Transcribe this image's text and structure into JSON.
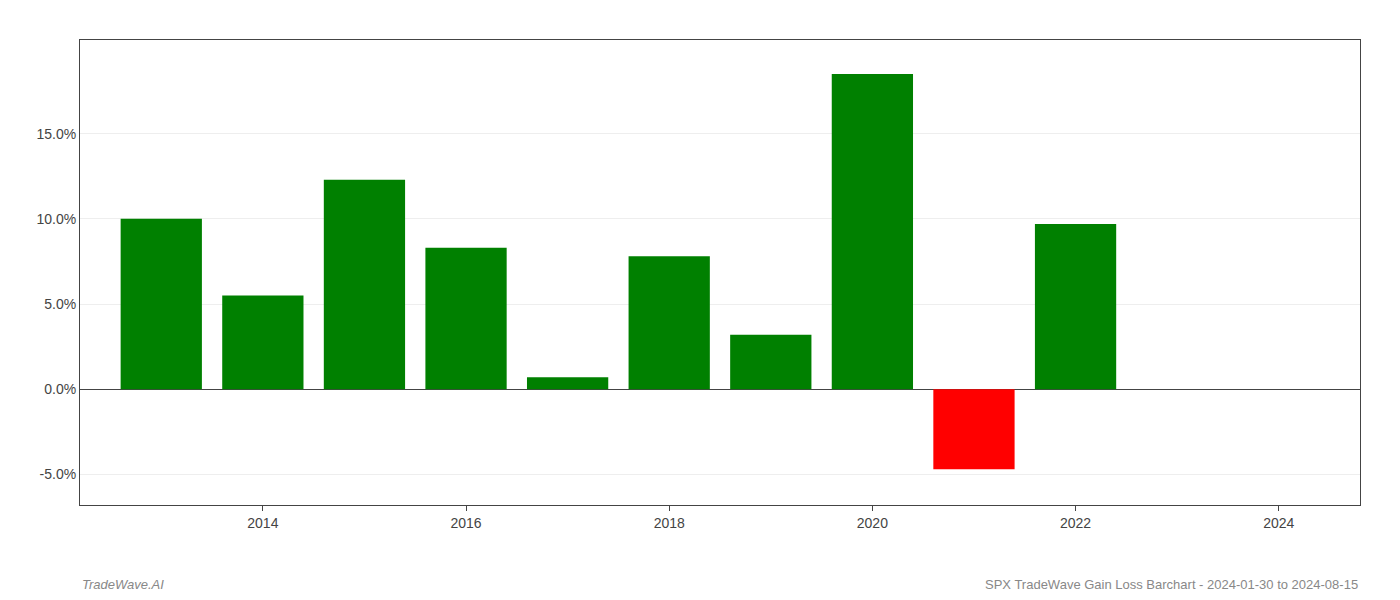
{
  "chart_data": {
    "type": "bar",
    "x": [
      2013,
      2014,
      2015,
      2016,
      2017,
      2018,
      2019,
      2020,
      2021,
      2022,
      2023
    ],
    "values": [
      0.1,
      0.055,
      0.123,
      0.083,
      0.007,
      0.078,
      0.032,
      0.185,
      -0.047,
      0.097,
      0.0
    ],
    "colors": [
      "#008000",
      "#008000",
      "#008000",
      "#008000",
      "#008000",
      "#008000",
      "#008000",
      "#008000",
      "#ff0000",
      "#008000",
      "#008000"
    ],
    "xlim": [
      2012.2,
      2024.8
    ],
    "xticks": [
      2014,
      2016,
      2018,
      2020,
      2022,
      2024
    ],
    "ylim": [
      -0.068,
      0.205
    ],
    "yticks": [
      {
        "value": -0.05,
        "label": "-5.0%"
      },
      {
        "value": 0.0,
        "label": "0.0%"
      },
      {
        "value": 0.05,
        "label": "5.0%"
      },
      {
        "value": 0.1,
        "label": "10.0%"
      },
      {
        "value": 0.15,
        "label": "15.0%"
      }
    ],
    "grid": true,
    "annotations": [
      "TradeWave.AI",
      "SPX TradeWave Gain Loss Barchart - 2024-01-30 to 2024-08-15"
    ]
  }
}
